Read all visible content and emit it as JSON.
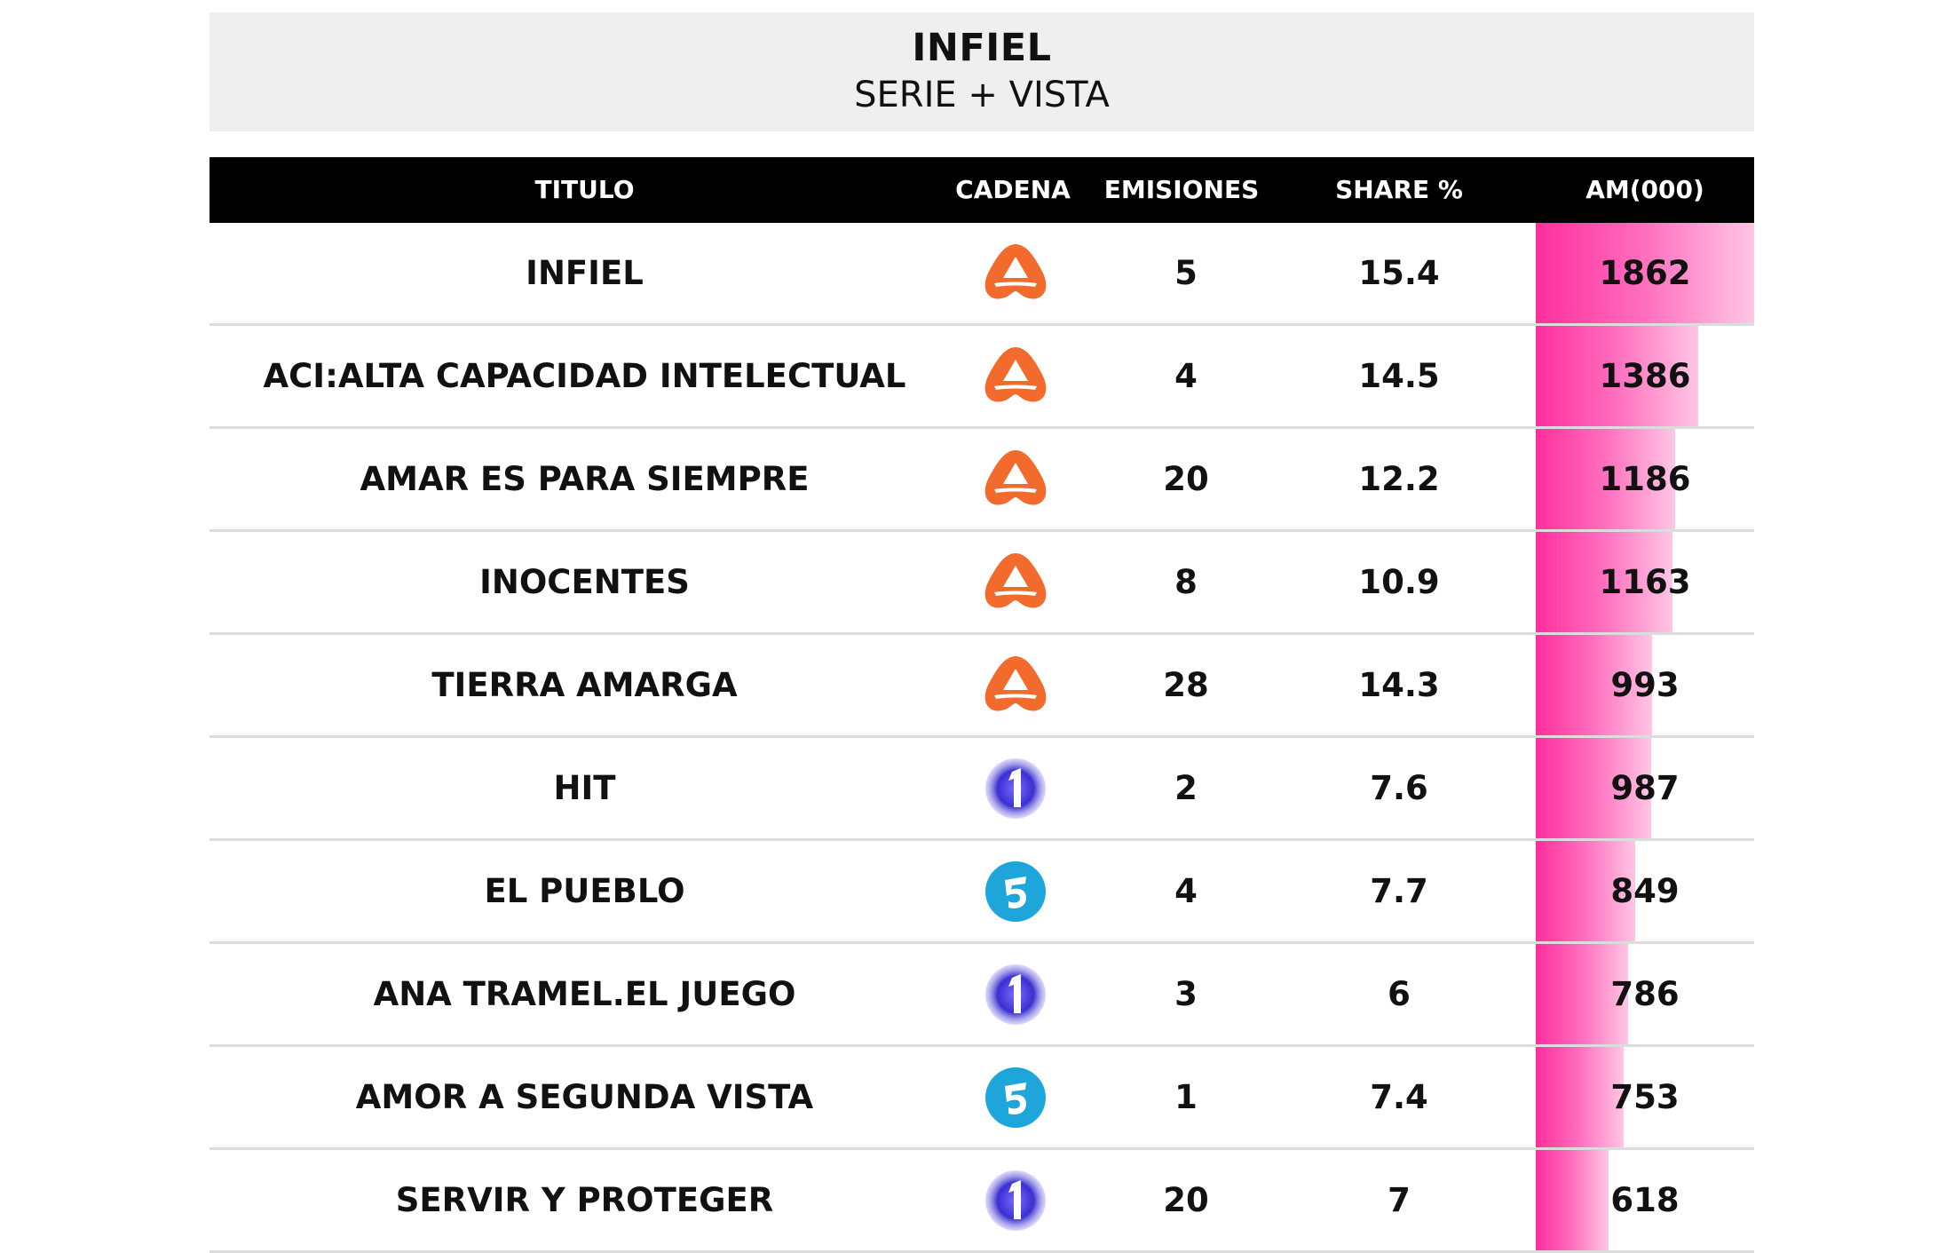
{
  "header": {
    "title": "INFIEL",
    "subtitle": "SERIE + VISTA"
  },
  "table": {
    "columns": [
      "TITULO",
      "CADENA",
      "EMISIONES",
      "SHARE %",
      "AM(000)"
    ],
    "rows": [
      {
        "titulo": "INFIEL",
        "cadena": "antena3-logo",
        "emisiones": "5",
        "share": "15.4",
        "am": "1862"
      },
      {
        "titulo": "ACI:ALTA CAPACIDAD INTELECTUAL",
        "cadena": "antena3-logo",
        "emisiones": "4",
        "share": "14.5",
        "am": "1386"
      },
      {
        "titulo": "AMAR ES PARA SIEMPRE",
        "cadena": "antena3-logo",
        "emisiones": "20",
        "share": "12.2",
        "am": "1186"
      },
      {
        "titulo": "INOCENTES",
        "cadena": "antena3-logo",
        "emisiones": "8",
        "share": "10.9",
        "am": "1163"
      },
      {
        "titulo": "TIERRA AMARGA",
        "cadena": "antena3-logo",
        "emisiones": "28",
        "share": "14.3",
        "am": "993"
      },
      {
        "titulo": "HIT",
        "cadena": "la1-logo",
        "emisiones": "2",
        "share": "7.6",
        "am": "987"
      },
      {
        "titulo": "EL PUEBLO",
        "cadena": "telecinco-logo",
        "emisiones": "4",
        "share": "7.7",
        "am": "849"
      },
      {
        "titulo": "ANA TRAMEL.EL JUEGO",
        "cadena": "la1-logo",
        "emisiones": "3",
        "share": "6",
        "am": "786"
      },
      {
        "titulo": "AMOR A SEGUNDA VISTA",
        "cadena": "telecinco-logo",
        "emisiones": "1",
        "share": "7.4",
        "am": "753"
      },
      {
        "titulo": "SERVIR Y PROTEGER",
        "cadena": "la1-logo",
        "emisiones": "20",
        "share": "7",
        "am": "618"
      }
    ]
  },
  "colors": {
    "header_bg": "#000000",
    "title_bg": "#efefef",
    "bar_start": "#ff2e9e",
    "bar_end": "#ffc6e5",
    "antena3": "#f26b2c",
    "la1": "#3b2fd0",
    "telecinco": "#1ea6db"
  },
  "chart_data": {
    "type": "bar",
    "title": "INFIEL",
    "subtitle": "SERIE + VISTA",
    "categories": [
      "INFIEL",
      "ACI:ALTA CAPACIDAD INTELECTUAL",
      "AMAR ES PARA SIEMPRE",
      "INOCENTES",
      "TIERRA AMARGA",
      "HIT",
      "EL PUEBLO",
      "ANA TRAMEL.EL JUEGO",
      "AMOR A SEGUNDA VISTA",
      "SERVIR Y PROTEGER"
    ],
    "values": [
      1862,
      1386,
      1186,
      1163,
      993,
      987,
      849,
      786,
      753,
      618
    ],
    "ylabel": "AM(000)",
    "xlim": [
      0,
      1862
    ],
    "orientation": "horizontal"
  }
}
